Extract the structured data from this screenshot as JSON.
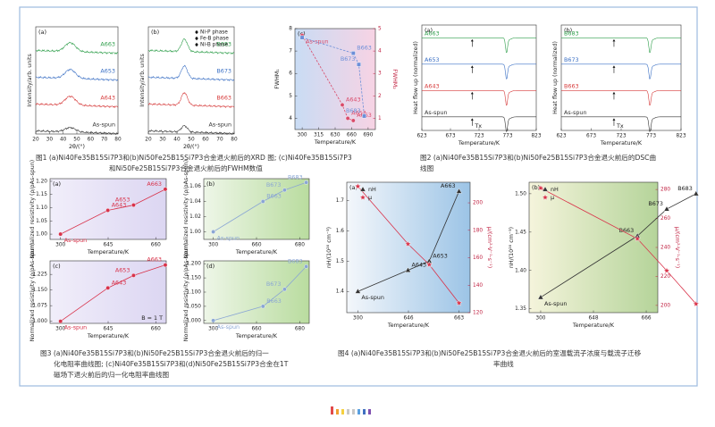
{
  "chart_data": [
    {
      "type": "xrd",
      "panel": "(a)",
      "xlabel": "2θ/(°)",
      "ylabel": "Intensity/arb. units",
      "xlim": [
        20,
        80
      ],
      "xticks": [
        20,
        30,
        40,
        50,
        60,
        70,
        80
      ],
      "series": [
        {
          "name": "A663",
          "color": "#2e9e4a"
        },
        {
          "name": "A653",
          "color": "#3a6fc4"
        },
        {
          "name": "A643",
          "color": "#d63a3a"
        },
        {
          "name": "As-spun",
          "color": "#333333"
        }
      ]
    },
    {
      "type": "xrd",
      "panel": "(b)",
      "xlabel": "2θ/(°)",
      "ylabel": "Intensity/arb. units",
      "xlim": [
        20,
        80
      ],
      "xticks": [
        20,
        30,
        40,
        50,
        60,
        70,
        80
      ],
      "phases": [
        "Ni-P phase",
        "Fe-B phase",
        "Ni-B phase"
      ],
      "series": [
        {
          "name": "B683",
          "color": "#2e9e4a"
        },
        {
          "name": "B673",
          "color": "#3a6fc4"
        },
        {
          "name": "B663",
          "color": "#d63a3a"
        },
        {
          "name": "As-spun",
          "color": "#333333"
        }
      ]
    },
    {
      "type": "line",
      "panel": "(c)",
      "xlabel": "Temperature/K",
      "ylabel": "FWHM₁",
      "y2label": "FWHM₂",
      "xticks": [
        300,
        315,
        630,
        660,
        690
      ],
      "ylim": [
        3.5,
        8
      ],
      "yticks": [
        4,
        5,
        6,
        7,
        8
      ],
      "y2lim": [
        0.5,
        5
      ],
      "y2ticks": [
        1,
        2,
        3,
        4,
        5
      ],
      "background": [
        "#c9dcf4",
        "#f7d3e4"
      ],
      "series": [
        {
          "color": "#d94b6a",
          "marker": "circle",
          "dash": true,
          "x": [
            300,
            643,
            653,
            663
          ],
          "values": [
            7.7,
            4.6,
            4.0,
            3.9
          ],
          "point_labels": [
            "As-spun",
            "A643",
            "A653",
            "A663"
          ]
        },
        {
          "color": "#6d8fd8",
          "marker": "square",
          "dash": true,
          "axis": "y2",
          "x": [
            300,
            663,
            673,
            683
          ],
          "values": [
            4.6,
            3.9,
            3.4,
            1.1
          ],
          "point_labels": [
            null,
            "B663",
            "B673",
            "B683"
          ]
        }
      ]
    },
    {
      "type": "dsc",
      "panel": "(a)",
      "xlabel": "Temperature/K",
      "ylabel": "Heat flow up (normalized)",
      "xlim": [
        623,
        823
      ],
      "xticks": [
        623,
        673,
        723,
        773,
        823
      ],
      "annotation": "Tx",
      "series": [
        {
          "name": "A663",
          "color": "#2e9e4a"
        },
        {
          "name": "A653",
          "color": "#3a6fc4"
        },
        {
          "name": "A643",
          "color": "#d63a3a"
        },
        {
          "name": "As-spun",
          "color": "#333333"
        }
      ]
    },
    {
      "type": "dsc",
      "panel": "(b)",
      "xlabel": "Temperature/K",
      "ylabel": "Heat flow up (normalized)",
      "xlim": [
        623,
        823
      ],
      "xticks": [
        623,
        673,
        723,
        773,
        823
      ],
      "annotation": "Tx",
      "series": [
        {
          "name": "B683",
          "color": "#2e9e4a"
        },
        {
          "name": "B673",
          "color": "#3a6fc4"
        },
        {
          "name": "B663",
          "color": "#d63a3a"
        },
        {
          "name": "As-spun",
          "color": "#333333"
        }
      ]
    },
    {
      "type": "line",
      "panel": "(a)",
      "xlabel": "Temperature/K",
      "ylabel": "Normalized resistivity (ρ/ρAs-spun)",
      "xticks": [
        300,
        645,
        660
      ],
      "ylim": [
        0.98,
        1.21
      ],
      "yticks": [
        {
          "value": 1,
          "label": "1.00"
        },
        1.05,
        {
          "value": 1.1,
          "label": "1.10"
        },
        1.15,
        {
          "value": 1.2,
          "label": "1.20"
        }
      ],
      "background": [
        "#f1eefa",
        "#dcd6f2"
      ],
      "series": [
        {
          "color": "#d8324a",
          "marker": "circle",
          "x": [
            300,
            643,
            653,
            663
          ],
          "values": [
            1.0,
            1.09,
            1.11,
            1.17
          ],
          "point_labels": [
            "As-spun",
            "A643",
            "A653",
            "A663"
          ]
        }
      ]
    },
    {
      "type": "line",
      "panel": "(b)",
      "xlabel": "Temperature/K",
      "ylabel": "Normalized resistivity (ρ/ρAs-spun)",
      "xticks": [
        300,
        660,
        680
      ],
      "ylim": [
        0.99,
        1.07
      ],
      "yticks": [
        {
          "value": 1,
          "label": "1.00"
        },
        1.02,
        1.04,
        1.06
      ],
      "background": [
        "#eef6e8",
        "#b9dc9f"
      ],
      "series": [
        {
          "color": "#8aa6d4",
          "marker": "circle",
          "x": [
            300,
            663,
            673,
            683
          ],
          "values": [
            1.0,
            1.04,
            1.055,
            1.065
          ],
          "point_labels": [
            "As-spun",
            "B663",
            "B673",
            "B683"
          ]
        }
      ]
    },
    {
      "type": "line",
      "panel": "(c)",
      "xlabel": "Temperature/K",
      "ylabel": "Normalized resistivity (ρ/ρAs-spun)",
      "xticks": [
        300,
        645,
        660
      ],
      "ylim": [
        0.99,
        1.29
      ],
      "yticks": [
        {
          "value": 1,
          "label": "1.000"
        },
        1.075,
        {
          "value": 1.15,
          "label": "1.150"
        },
        1.225
      ],
      "background": [
        "#f1eefa",
        "#dcd6f2"
      ],
      "annotation": "B = 1 T",
      "series": [
        {
          "color": "#d8324a",
          "marker": "circle",
          "x": [
            300,
            643,
            653,
            663
          ],
          "values": [
            1.0,
            1.16,
            1.22,
            1.27
          ],
          "point_labels": [
            "As-spun",
            "A643",
            "A653",
            "A663"
          ]
        }
      ]
    },
    {
      "type": "line",
      "panel": "(d)",
      "xlabel": "Temperature/K",
      "ylabel": "Normalized resistivity (ρ/ρAs-spun)",
      "xticks": [
        300,
        660,
        680
      ],
      "ylim": [
        0.99,
        1.21
      ],
      "yticks": [
        {
          "value": 1,
          "label": "1.000"
        },
        {
          "value": 1.05,
          "label": "1.050"
        },
        {
          "value": 1.1,
          "label": "1.100"
        },
        {
          "value": 1.15,
          "label": "1.150"
        },
        {
          "value": 1.2,
          "label": "1.200"
        }
      ],
      "background": [
        "#eef6e8",
        "#b9dc9f"
      ],
      "series": [
        {
          "color": "#8aa6d4",
          "marker": "circle",
          "x": [
            300,
            663,
            673,
            683
          ],
          "values": [
            1.0,
            1.05,
            1.11,
            1.19
          ],
          "point_labels": [
            "As-spun",
            "B663",
            "B673",
            "B683"
          ]
        }
      ]
    },
    {
      "type": "line",
      "panel": "(a)",
      "xlabel": "Temperature/K",
      "ylabel": "nH/(10²⁰ cm⁻³)",
      "y2label": "μ/(cm²·V⁻¹·s⁻¹)",
      "legend": "top-left",
      "xticks": [
        300,
        646,
        663
      ],
      "ylim": [
        1.33,
        1.76
      ],
      "yticks": [
        1.4,
        1.5,
        1.6,
        1.7
      ],
      "y2lim": [
        120,
        215
      ],
      "y2ticks": [
        120,
        140,
        160,
        180,
        200
      ],
      "background": [
        "#f4f7fb",
        "#9cc4e6"
      ],
      "series": [
        {
          "name": "nH",
          "color": "#333333",
          "marker": "triangle",
          "x": [
            300,
            643,
            653,
            663
          ],
          "values": [
            1.4,
            1.47,
            1.5,
            1.73
          ],
          "point_labels": [
            "As-spun",
            "A643",
            "A653",
            "A663"
          ]
        },
        {
          "name": "μ",
          "color": "#d9334a",
          "marker": "star",
          "axis": "y2",
          "x": [
            300,
            643,
            653,
            663
          ],
          "values": [
            212,
            170,
            155,
            127
          ]
        }
      ]
    },
    {
      "type": "line",
      "panel": "(b)",
      "xlabel": "Temperature/K",
      "ylabel": "nH/(10²⁰ cm⁻³)",
      "y2label": "μ/(cm²·V⁻¹·s⁻¹)",
      "legend": "top-left",
      "xticks": [
        300,
        648,
        666
      ],
      "ylim": [
        1.345,
        1.515
      ],
      "yticks": [
        1.35,
        {
          "value": 1.4,
          "label": "1.40"
        },
        1.45,
        {
          "value": 1.5,
          "label": "1.50"
        }
      ],
      "y2lim": [
        195,
        285
      ],
      "y2ticks": [
        200,
        220,
        240,
        260,
        280
      ],
      "background": [
        "#f5f4dc",
        "#b5d49a"
      ],
      "series": [
        {
          "name": "nH",
          "color": "#333333",
          "marker": "triangle",
          "x": [
            300,
            663,
            673,
            683
          ],
          "values": [
            1.365,
            1.445,
            1.48,
            1.5
          ],
          "point_labels": [
            "As-spun",
            "B663",
            "B673",
            "B683"
          ]
        },
        {
          "name": "μ",
          "color": "#d9334a",
          "marker": "star",
          "axis": "y2",
          "x": [
            300,
            663,
            673,
            683
          ],
          "values": [
            281,
            246,
            224,
            201
          ]
        }
      ]
    }
  ],
  "captions": [
    {
      "lines": [
        "图1 (a)Ni40Fe35B15Si7P3和(b)Ni50Fe25B15Si7P3合金退火前后的XRD 图; (c)Ni40Fe35B15Si7P3",
        "和Ni50Fe25B15Si7P3合金退火前后的FWHM数值"
      ]
    },
    {
      "lines": [
        "图2 (a)Ni40Fe35B15Si7P3和(b)Ni50Fe25B15Si7P3合金退火前后的DSC曲",
        "线图"
      ]
    },
    {
      "lines": [
        "图3 (a)Ni40Fe35B15Si7P3和(b)Ni50Fe25B15Si7P3合金退火前后的归一",
        "化电阻率曲线图; (c)Ni40Fe35B15Si7P3和(d)Ni50Fe25B15Si7P3合金在1T",
        "磁场下退火前后的归一化电阻率曲线图"
      ]
    },
    {
      "lines": [
        "图4 (a)Ni40Fe35B15Si7P3和(b)Ni50Fe25B15Si7P3合金退火前后的室温载流子浓度与载流子迁移",
        "率曲线"
      ]
    }
  ]
}
